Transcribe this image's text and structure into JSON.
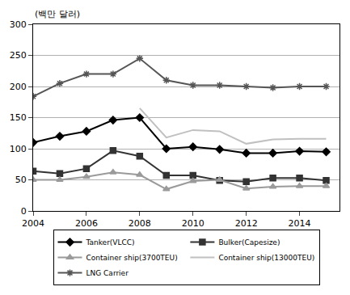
{
  "chart_data": {
    "type": "line",
    "y_label": "(백만 달러)",
    "x": [
      2004,
      2005,
      2006,
      2007,
      2008,
      2009,
      2010,
      2011,
      2012,
      2013,
      2014,
      2015
    ],
    "xlim": [
      2004,
      2015.5
    ],
    "xticks": [
      2004,
      2006,
      2008,
      2010,
      2012,
      2014
    ],
    "ylim": [
      0,
      300
    ],
    "yticks": [
      0,
      50,
      100,
      150,
      200,
      250,
      300
    ],
    "grid": true,
    "legend": "bottom",
    "series": [
      {
        "name": "Tanker(VLCC)",
        "color": "#000000",
        "marker": "diamond",
        "values": [
          110,
          120,
          128,
          146,
          150,
          100,
          103,
          99,
          93,
          93,
          96,
          95
        ]
      },
      {
        "name": "Bulker(Capesize)",
        "color": "#333333",
        "marker": "square",
        "values": [
          64,
          60,
          68,
          97,
          88,
          57,
          57,
          49,
          47,
          53,
          53,
          49
        ]
      },
      {
        "name": "Container ship(3700TEU)",
        "color": "#9a9a9a",
        "marker": "triangle-up",
        "values": [
          50,
          50,
          55,
          62,
          58,
          35,
          48,
          50,
          36,
          39,
          40,
          40
        ]
      },
      {
        "name": "Container ship(13000TEU)",
        "color": "#c0c0c0",
        "marker": "none",
        "values": [
          null,
          null,
          null,
          null,
          165,
          118,
          130,
          128,
          108,
          115,
          116,
          116
        ]
      },
      {
        "name": "LNG Carrier",
        "color": "#555555",
        "marker": "asterisk",
        "values": [
          184,
          205,
          220,
          220,
          245,
          210,
          202,
          202,
          200,
          198,
          200,
          200
        ]
      }
    ]
  }
}
